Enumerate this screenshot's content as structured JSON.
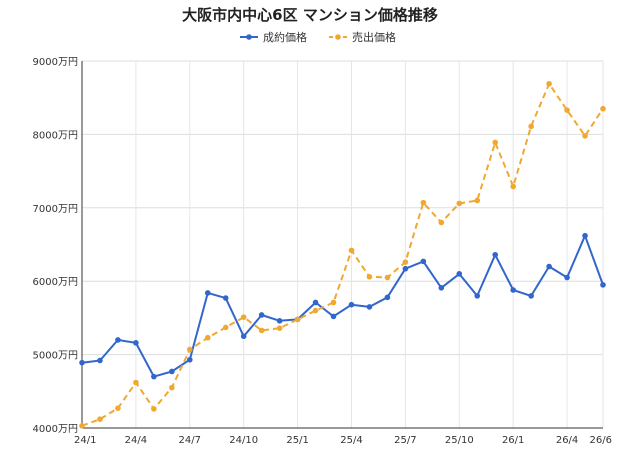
{
  "chart_data": {
    "type": "line",
    "title": "大阪市内中心6区 マンション価格推移",
    "x": [
      "24/1",
      "24/2",
      "24/3",
      "24/4",
      "24/5",
      "24/6",
      "24/7",
      "24/8",
      "24/9",
      "24/10",
      "24/11",
      "24/12",
      "25/1",
      "25/2",
      "25/3",
      "25/4",
      "25/5",
      "25/6",
      "25/7",
      "25/8",
      "25/9",
      "25/10",
      "25/11",
      "25/12",
      "26/1",
      "26/2",
      "26/3",
      "26/4",
      "26/5",
      "26/6"
    ],
    "x_tick_labels": [
      "24/1",
      "24/4",
      "24/7",
      "24/10",
      "25/1",
      "25/4",
      "25/7",
      "25/10",
      "26/1",
      "26/4",
      "26/6"
    ],
    "y_tick_labels": [
      "4000万円",
      "5000万円",
      "6000万円",
      "7000万円",
      "8000万円",
      "9000万円"
    ],
    "ylim": [
      4000,
      9000
    ],
    "yticks": [
      4000,
      5000,
      6000,
      7000,
      8000,
      9000
    ],
    "grid": true,
    "legend_position": "top",
    "series": [
      {
        "name": "成約価格",
        "color": "#3366cc",
        "style": "solid",
        "values": [
          4890,
          4920,
          5200,
          5160,
          4700,
          4770,
          4930,
          5840,
          5770,
          5250,
          5540,
          5460,
          5480,
          5710,
          5520,
          5680,
          5650,
          5780,
          6170,
          6270,
          5910,
          6100,
          5800,
          6360,
          5880,
          5800,
          6200,
          6050,
          6620,
          5950
        ]
      },
      {
        "name": "売出価格",
        "color": "#f0a830",
        "style": "dashed",
        "values": [
          4030,
          4120,
          4270,
          4620,
          4260,
          4550,
          5070,
          5230,
          5370,
          5510,
          5330,
          5360,
          5480,
          5600,
          5710,
          6420,
          6060,
          6050,
          6260,
          7070,
          6800,
          7060,
          7100,
          7890,
          7290,
          8110,
          8690,
          8330,
          7980,
          8350
        ]
      }
    ]
  }
}
